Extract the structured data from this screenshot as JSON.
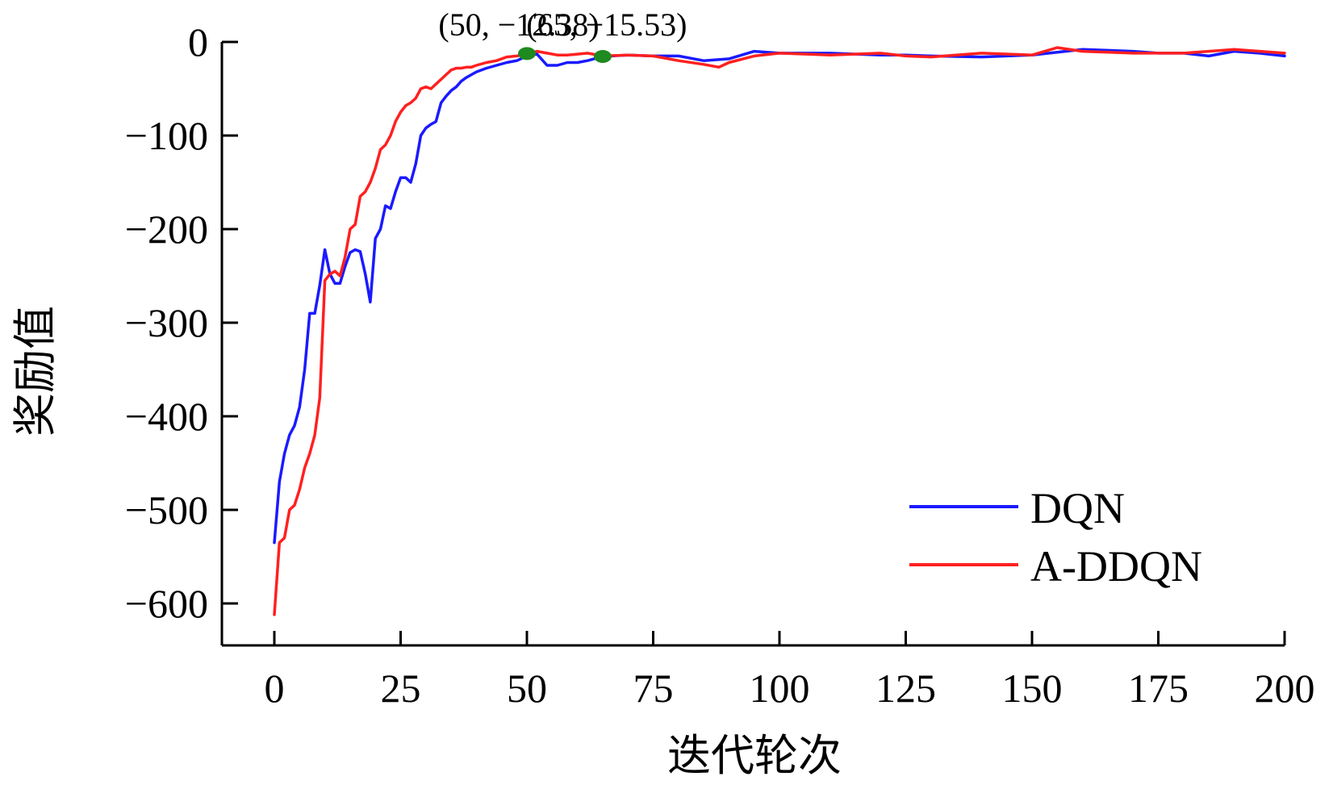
{
  "chart_data": {
    "type": "line",
    "title": "",
    "xlabel": "迭代轮次",
    "ylabel": "奖励值",
    "xlim": [
      0,
      200
    ],
    "ylim": [
      -650,
      0
    ],
    "xticks": [
      0,
      25,
      50,
      75,
      100,
      125,
      150,
      175,
      200
    ],
    "yticks": [
      0,
      -100,
      -200,
      -300,
      -400,
      -500,
      -600
    ],
    "xtick_labels": [
      "0",
      "25",
      "50",
      "75",
      "100",
      "125",
      "150",
      "175",
      "200"
    ],
    "ytick_labels": [
      "0",
      "−100",
      "−200",
      "−300",
      "−400",
      "−500",
      "−600"
    ],
    "grid": false,
    "legend_position": "bottom-right",
    "series": [
      {
        "name": "DQN",
        "color": "#1a1aff",
        "x": [
          0,
          1,
          2,
          3,
          4,
          5,
          6,
          7,
          8,
          9,
          10,
          11,
          12,
          13,
          14,
          15,
          16,
          17,
          18,
          19,
          20,
          21,
          22,
          23,
          24,
          25,
          26,
          27,
          28,
          29,
          30,
          31,
          32,
          33,
          34,
          35,
          36,
          37,
          38,
          39,
          40,
          42,
          44,
          46,
          48,
          50,
          52,
          54,
          56,
          58,
          60,
          62,
          65,
          70,
          75,
          80,
          85,
          90,
          95,
          100,
          110,
          120,
          125,
          130,
          140,
          150,
          160,
          165,
          170,
          175,
          180,
          185,
          190,
          195,
          200
        ],
        "y": [
          -535,
          -470,
          -440,
          -420,
          -410,
          -390,
          -350,
          -290,
          -290,
          -260,
          -222,
          -248,
          -258,
          -258,
          -240,
          -225,
          -222,
          -224,
          -248,
          -278,
          -210,
          -200,
          -175,
          -178,
          -160,
          -145,
          -145,
          -150,
          -130,
          -100,
          -92,
          -88,
          -85,
          -65,
          -58,
          -52,
          -48,
          -42,
          -38,
          -35,
          -32,
          -28,
          -25,
          -22,
          -20,
          -15,
          -13,
          -25,
          -25,
          -22,
          -22,
          -20,
          -15.53,
          -14,
          -15,
          -15,
          -20,
          -18,
          -10,
          -12,
          -12,
          -14,
          -14,
          -15,
          -16,
          -14,
          -8,
          -9,
          -10,
          -12,
          -12,
          -15,
          -10,
          -12,
          -15
        ]
      },
      {
        "name": "A-DDQN",
        "color": "#ff2020",
        "x": [
          0,
          1,
          2,
          3,
          4,
          5,
          6,
          7,
          8,
          9,
          10,
          11,
          12,
          13,
          14,
          15,
          16,
          17,
          18,
          19,
          20,
          21,
          22,
          23,
          24,
          25,
          26,
          27,
          28,
          29,
          30,
          31,
          32,
          33,
          34,
          35,
          36,
          37,
          38,
          39,
          40,
          42,
          44,
          46,
          48,
          50,
          52,
          54,
          56,
          58,
          60,
          62,
          65,
          70,
          75,
          80,
          85,
          88,
          90,
          95,
          100,
          110,
          120,
          125,
          130,
          140,
          150,
          155,
          160,
          170,
          180,
          190,
          200
        ],
        "y": [
          -612,
          -535,
          -530,
          -500,
          -495,
          -478,
          -455,
          -440,
          -420,
          -380,
          -255,
          -248,
          -245,
          -250,
          -230,
          -200,
          -195,
          -165,
          -160,
          -150,
          -135,
          -115,
          -110,
          -100,
          -85,
          -75,
          -68,
          -65,
          -60,
          -50,
          -48,
          -50,
          -45,
          -40,
          -35,
          -30,
          -28,
          -28,
          -27,
          -27,
          -25,
          -22,
          -20,
          -16,
          -15,
          -12.38,
          -10,
          -12,
          -14,
          -14,
          -13,
          -12,
          -15,
          -14,
          -15,
          -20,
          -24,
          -27,
          -22,
          -15,
          -12,
          -14,
          -12,
          -15,
          -16,
          -12,
          -14,
          -6,
          -10,
          -12,
          -12,
          -8,
          -12
        ]
      }
    ],
    "annotations": [
      {
        "text": "(50, −12.38)",
        "x": 50,
        "y": -12.38
      },
      {
        "text": "(65, −15.53)",
        "x": 65,
        "y": -15.53
      }
    ],
    "marker_color": "#1f8a1f"
  }
}
